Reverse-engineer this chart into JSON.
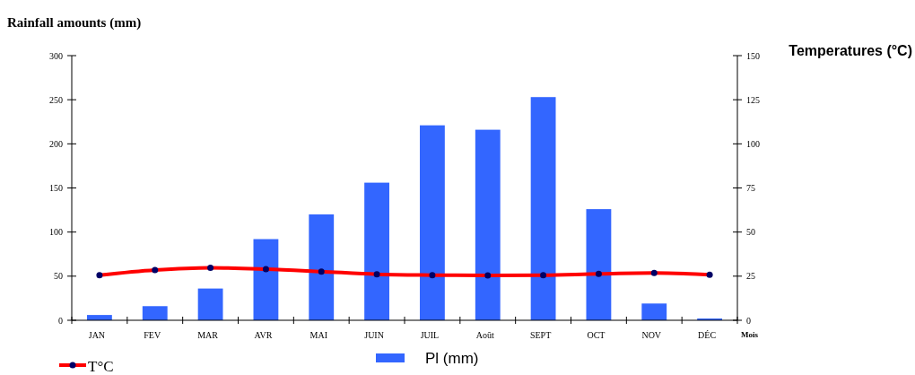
{
  "chart_data": {
    "type": "bar",
    "ylabel": "Rainfall amounts (mm)",
    "y2label": "Temperatures (°C)",
    "xlabel": "Mois",
    "categories": [
      "JAN",
      "FEV",
      "MAR",
      "AVR",
      "MAI",
      "JUIN",
      "JUIL",
      "Août",
      "SEPT",
      "OCT",
      "NOV",
      "DÉC"
    ],
    "series": [
      {
        "name": "Pl (mm)",
        "color": "#3366ff",
        "values": [
          6,
          16,
          36,
          92,
          120,
          156,
          221,
          216,
          253,
          126,
          19,
          2
        ]
      },
      {
        "name": "T°C",
        "type": "line",
        "axis": "y2",
        "color": "#ff0000",
        "marker": "circle",
        "values": [
          25.6,
          28.5,
          29.8,
          29,
          27.6,
          26.1,
          25.6,
          25.4,
          25.6,
          26.3,
          26.8,
          25.8
        ]
      }
    ],
    "ylim": [
      0,
      300
    ],
    "yticks": [
      0,
      50,
      100,
      150,
      200,
      250,
      300
    ],
    "y2lim": [
      0,
      150
    ],
    "y2ticks": [
      0,
      25,
      50,
      75,
      100,
      125,
      150
    ],
    "grid": false,
    "legend": "bottom"
  }
}
